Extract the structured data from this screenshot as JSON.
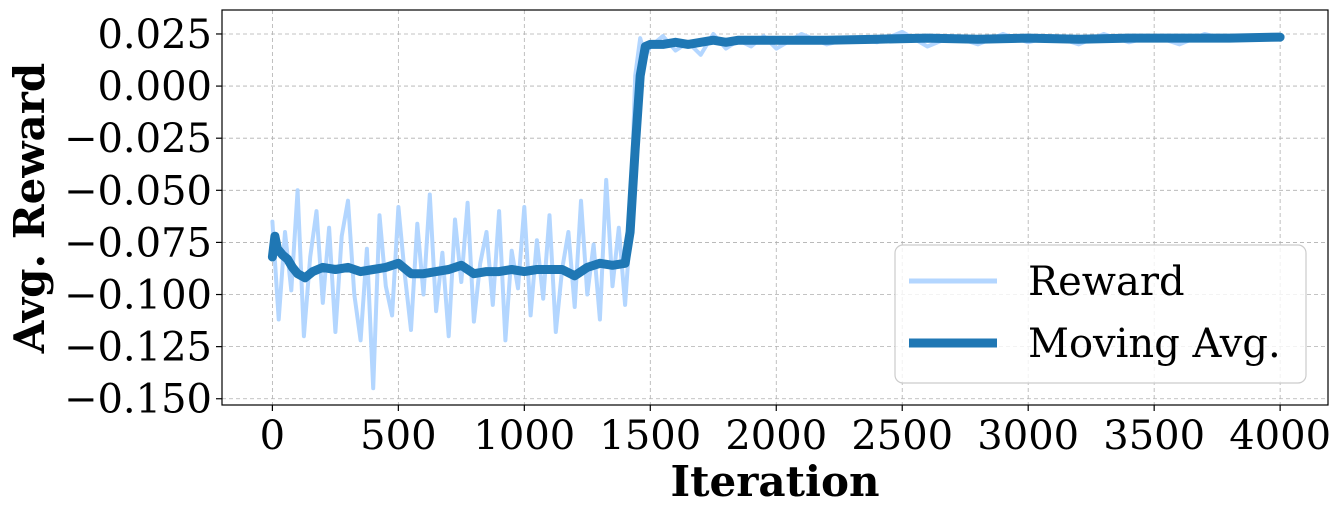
{
  "chart_data": {
    "type": "line",
    "xlabel": "Iteration",
    "ylabel": "Avg. Reward",
    "xlim": [
      -200,
      4190
    ],
    "ylim": [
      -0.153,
      0.0365
    ],
    "xticks": [
      0,
      500,
      1000,
      1500,
      2000,
      2500,
      3000,
      3500,
      4000
    ],
    "yticks": [
      0.025,
      0.0,
      -0.025,
      -0.05,
      -0.075,
      -0.1,
      -0.125,
      -0.15
    ],
    "xtick_labels": [
      "0",
      "500",
      "1000",
      "1500",
      "2000",
      "2500",
      "3000",
      "3500",
      "4000"
    ],
    "ytick_labels": [
      "0.025",
      "0.000",
      "−0.025",
      "−0.050",
      "−0.075",
      "−0.100",
      "−0.125",
      "−0.150"
    ],
    "grid": true,
    "legend_position": "lower-right",
    "series": [
      {
        "name": "Reward",
        "color": "#b3d6ff",
        "x": [
          0,
          25,
          50,
          75,
          100,
          125,
          150,
          175,
          200,
          225,
          250,
          275,
          300,
          325,
          350,
          375,
          400,
          425,
          450,
          475,
          500,
          525,
          550,
          575,
          600,
          625,
          650,
          675,
          700,
          725,
          750,
          775,
          800,
          825,
          850,
          875,
          900,
          925,
          950,
          975,
          1000,
          1025,
          1050,
          1075,
          1100,
          1125,
          1150,
          1175,
          1200,
          1225,
          1250,
          1275,
          1300,
          1325,
          1350,
          1375,
          1400,
          1420,
          1440,
          1460,
          1480,
          1500,
          1550,
          1600,
          1650,
          1700,
          1750,
          1800,
          1850,
          1900,
          1950,
          2000,
          2100,
          2200,
          2300,
          2400,
          2500,
          2600,
          2700,
          2800,
          2900,
          3000,
          3100,
          3200,
          3300,
          3400,
          3500,
          3600,
          3700,
          3800,
          3900,
          4000
        ],
        "values": [
          -0.065,
          -0.112,
          -0.07,
          -0.098,
          -0.05,
          -0.12,
          -0.082,
          -0.06,
          -0.104,
          -0.068,
          -0.118,
          -0.072,
          -0.055,
          -0.1,
          -0.122,
          -0.078,
          -0.145,
          -0.062,
          -0.096,
          -0.11,
          -0.058,
          -0.09,
          -0.117,
          -0.066,
          -0.1,
          -0.052,
          -0.108,
          -0.08,
          -0.12,
          -0.064,
          -0.094,
          -0.056,
          -0.113,
          -0.085,
          -0.07,
          -0.105,
          -0.06,
          -0.122,
          -0.079,
          -0.097,
          -0.058,
          -0.11,
          -0.074,
          -0.102,
          -0.062,
          -0.118,
          -0.088,
          -0.07,
          -0.106,
          -0.055,
          -0.1,
          -0.076,
          -0.112,
          -0.045,
          -0.096,
          -0.068,
          -0.105,
          -0.07,
          0.005,
          0.023,
          0.014,
          0.019,
          0.024,
          0.017,
          0.021,
          0.015,
          0.025,
          0.018,
          0.022,
          0.019,
          0.024,
          0.018,
          0.025,
          0.02,
          0.023,
          0.021,
          0.026,
          0.019,
          0.024,
          0.02,
          0.025,
          0.021,
          0.024,
          0.02,
          0.025,
          0.021,
          0.024,
          0.02,
          0.025,
          0.022,
          0.024,
          0.023
        ]
      },
      {
        "name": "Moving Avg.",
        "color": "#1f77b4",
        "x": [
          0,
          10,
          20,
          40,
          60,
          80,
          100,
          130,
          160,
          200,
          250,
          300,
          350,
          400,
          450,
          500,
          550,
          600,
          650,
          700,
          750,
          800,
          850,
          900,
          950,
          1000,
          1050,
          1100,
          1150,
          1200,
          1250,
          1300,
          1350,
          1400,
          1420,
          1440,
          1460,
          1480,
          1500,
          1550,
          1600,
          1650,
          1700,
          1750,
          1800,
          1850,
          1900,
          2000,
          2200,
          2400,
          2600,
          2800,
          3000,
          3200,
          3400,
          3600,
          3800,
          4000
        ],
        "values": [
          -0.082,
          -0.072,
          -0.078,
          -0.081,
          -0.083,
          -0.087,
          -0.09,
          -0.092,
          -0.089,
          -0.087,
          -0.088,
          -0.087,
          -0.089,
          -0.088,
          -0.087,
          -0.085,
          -0.09,
          -0.09,
          -0.089,
          -0.088,
          -0.086,
          -0.09,
          -0.089,
          -0.089,
          -0.088,
          -0.089,
          -0.088,
          -0.088,
          -0.088,
          -0.091,
          -0.087,
          -0.085,
          -0.086,
          -0.085,
          -0.07,
          -0.03,
          0.005,
          0.019,
          0.02,
          0.02,
          0.021,
          0.02,
          0.021,
          0.022,
          0.021,
          0.022,
          0.022,
          0.022,
          0.022,
          0.0225,
          0.023,
          0.0225,
          0.023,
          0.0225,
          0.023,
          0.023,
          0.023,
          0.0235
        ]
      }
    ]
  }
}
